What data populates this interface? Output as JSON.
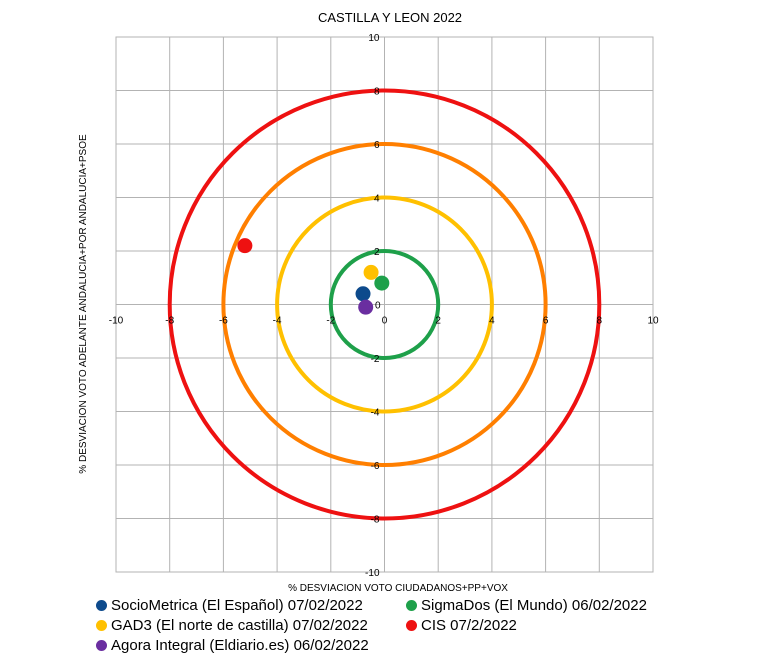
{
  "chart_data": {
    "type": "scatter",
    "title": "CASTILLA Y LEON 2022",
    "xlabel": "% DESVIACION VOTO CIUDADANOS+PP+VOX",
    "ylabel": "% DESVIACION VOTO ADELANTE ANDALUCIA+POR ANDALUCIA+PSOE",
    "xlim": [
      -10,
      10
    ],
    "ylim": [
      -10,
      10
    ],
    "xticks": [
      -10,
      -8,
      -6,
      -4,
      -2,
      0,
      2,
      4,
      6,
      8,
      10
    ],
    "yticks": [
      -10,
      -8,
      -6,
      -4,
      -2,
      0,
      2,
      4,
      6,
      8,
      10
    ],
    "grid": true,
    "legend_position": "bottom",
    "circles": [
      {
        "radius": 2,
        "color": "#1ea04a"
      },
      {
        "radius": 4,
        "color": "#ffc000"
      },
      {
        "radius": 6,
        "color": "#ff7f00"
      },
      {
        "radius": 8,
        "color": "#ee1111"
      }
    ],
    "series": [
      {
        "name": "SocioMetrica (El Español) 07/02/2022",
        "color": "#0d4a8c",
        "x": -0.8,
        "y": 0.4
      },
      {
        "name": "SigmaDos (El Mundo) 06/02/2022",
        "color": "#1ea04a",
        "x": -0.1,
        "y": 0.8
      },
      {
        "name": "GAD3 (El norte de castilla) 07/02/2022",
        "color": "#ffc000",
        "x": -0.5,
        "y": 1.2
      },
      {
        "name": "CIS 07/2/2022",
        "color": "#ee1111",
        "x": -5.2,
        "y": 2.2
      },
      {
        "name": "Agora Integral (Eldiario.es) 06/02/2022",
        "color": "#6a2ea0",
        "x": -0.7,
        "y": -0.1
      }
    ]
  }
}
